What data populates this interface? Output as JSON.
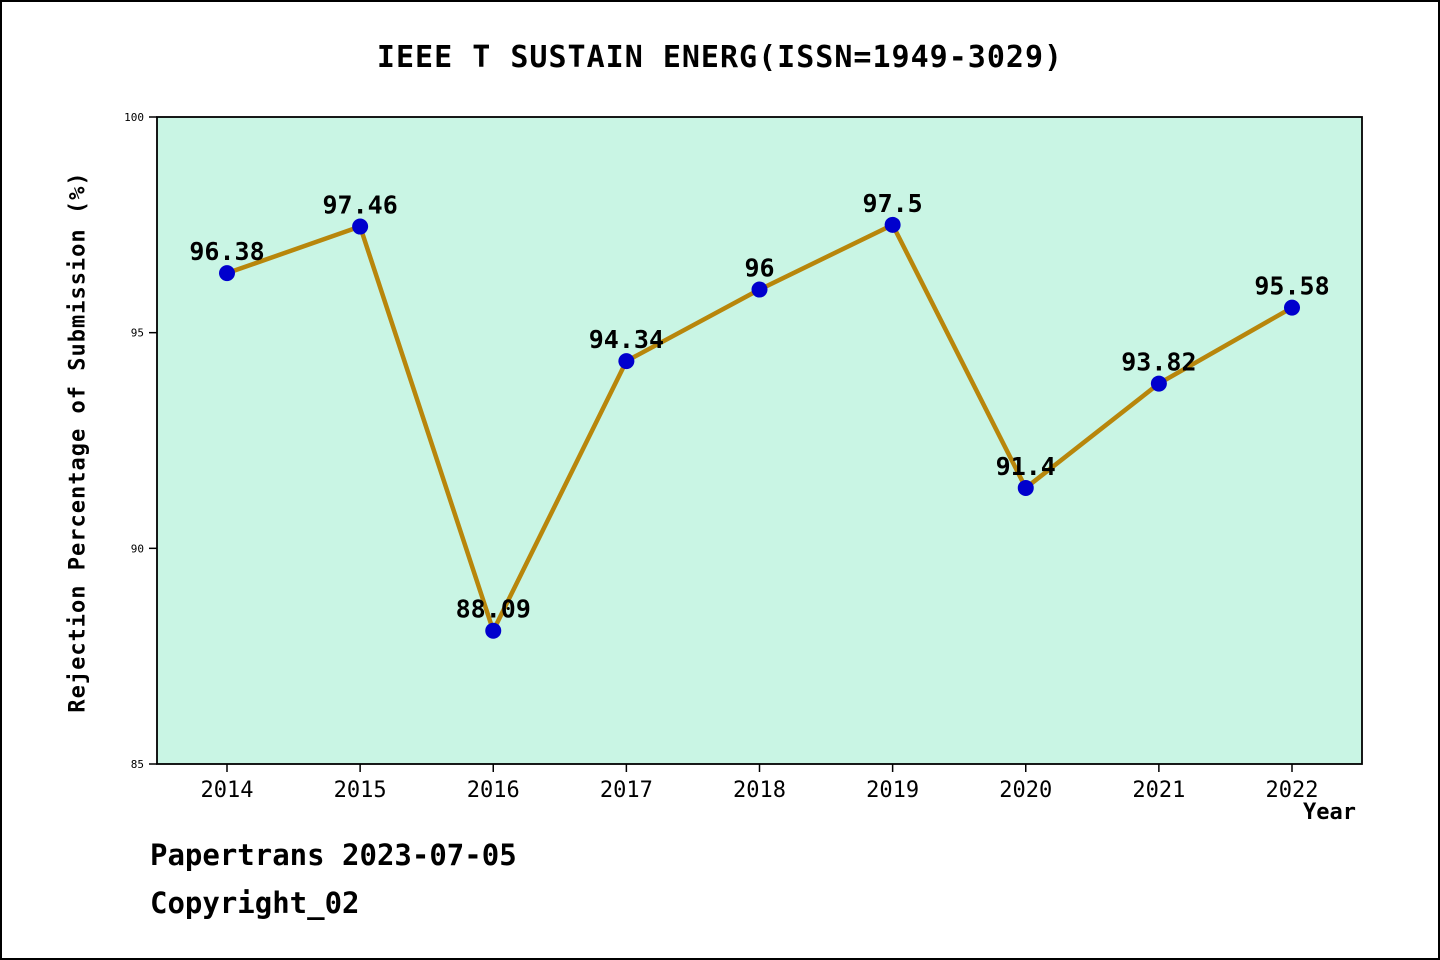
{
  "title": "IEEE T SUSTAIN ENERG(ISSN=1949-3029)",
  "footer": {
    "line1": "Papertrans 2023-07-05",
    "line2": "Copyright_02"
  },
  "chart_data": {
    "type": "line",
    "title": "IEEE T SUSTAIN ENERG(ISSN=1949-3029)",
    "xlabel": "Year",
    "ylabel": "Rejection Percentage of Submission (%)",
    "x": [
      2014,
      2015,
      2016,
      2017,
      2018,
      2019,
      2020,
      2021,
      2022
    ],
    "values": [
      96.38,
      97.46,
      88.09,
      94.34,
      96,
      97.5,
      91.4,
      93.82,
      95.58
    ],
    "point_labels": [
      "96.38",
      "97.46",
      "88.09",
      "94.34",
      "96",
      "97.5",
      "91.4",
      "93.82",
      "95.58"
    ],
    "ylim": [
      85,
      100
    ],
    "yticks": [
      85,
      90,
      95,
      100
    ],
    "grid": false,
    "legend": "none",
    "colors": {
      "line": "#b8860b",
      "marker": "#0000cd",
      "plot_bg": "#c9f5e4",
      "text": "#000000",
      "frame": "#000000"
    }
  }
}
